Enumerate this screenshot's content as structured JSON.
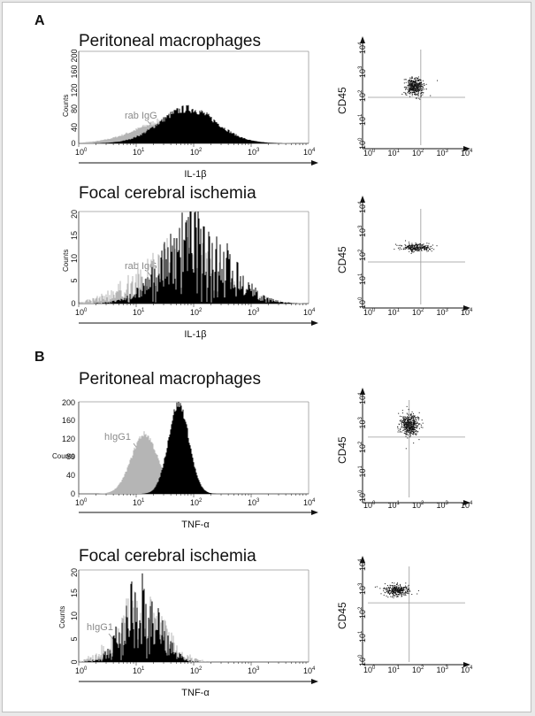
{
  "panels": [
    {
      "letter": "A",
      "sections": [
        {
          "title": "Peritoneal macrophages",
          "histogram": {
            "y_label": "Counts",
            "y_ticks": [
              "0",
              "40",
              "80",
              "120",
              "160",
              "200"
            ],
            "x_tick_bases": [
              "10",
              "10",
              "10",
              "10",
              "10"
            ],
            "x_tick_exps": [
              "0",
              "1",
              "2",
              "3",
              "4"
            ],
            "x_label": "IL-1β",
            "control_label": "rab IgG",
            "colors": {
              "control": "#b5b5b5",
              "stained": "#000000"
            }
          },
          "dotplot": {
            "y_label": "CD45"
          }
        },
        {
          "title": "Focal cerebral ischemia",
          "histogram": {
            "y_label": "Counts",
            "y_ticks": [
              "0",
              "5",
              "10",
              "15",
              "20"
            ],
            "x_tick_bases": [
              "10",
              "10",
              "10",
              "10",
              "10"
            ],
            "x_tick_exps": [
              "0",
              "1",
              "2",
              "3",
              "4"
            ],
            "x_label": "IL-1β",
            "control_label": "rab IgG",
            "colors": {
              "control": "#b5b5b5",
              "stained": "#000000"
            }
          },
          "dotplot": {
            "y_label": "CD45"
          }
        }
      ]
    },
    {
      "letter": "B",
      "sections": [
        {
          "title": "Peritoneal macrophages",
          "histogram": {
            "y_label": "Counts",
            "y_ticks": [
              "0",
              "40",
              "80",
              "120",
              "160",
              "200"
            ],
            "x_tick_bases": [
              "10",
              "10",
              "10",
              "10",
              "10"
            ],
            "x_tick_exps": [
              "0",
              "1",
              "2",
              "3",
              "4"
            ],
            "x_label": "TNF-α",
            "control_label": "hIgG1",
            "colors": {
              "control": "#b5b5b5",
              "stained": "#000000"
            }
          },
          "dotplot": {
            "y_label": "CD45"
          }
        },
        {
          "title": "Focal cerebral ischemia",
          "histogram": {
            "y_label": "Counts",
            "y_ticks": [
              "0",
              "5",
              "10",
              "15",
              "20"
            ],
            "x_tick_bases": [
              "10",
              "10",
              "10",
              "10",
              "10"
            ],
            "x_tick_exps": [
              "0",
              "1",
              "2",
              "3",
              "4"
            ],
            "x_label": "TNF-α",
            "control_label": "hIgG1",
            "colors": {
              "control": "#b5b5b5",
              "stained": "#000000"
            }
          },
          "dotplot": {
            "y_label": "CD45"
          }
        }
      ]
    }
  ],
  "chart_data": [
    {
      "type": "area",
      "panel": "A",
      "title": "Peritoneal macrophages",
      "xlabel": "IL-1β",
      "ylabel": "Counts",
      "x_scale": "log",
      "xlim": [
        1,
        10000
      ],
      "ylim": [
        0,
        200
      ],
      "series": [
        {
          "name": "rab IgG",
          "peak_x": 50,
          "peak_count": 55
        },
        {
          "peak_x": 80,
          "peak_count": 75
        }
      ]
    },
    {
      "type": "scatter",
      "panel": "A",
      "title": "Peritoneal macrophages",
      "xlabel": "IL-1β",
      "ylabel": "CD45",
      "x_scale": "log",
      "y_scale": "log",
      "xlim": [
        1,
        10000
      ],
      "ylim": [
        1,
        10000
      ],
      "quadrant_lines": {
        "x": 150,
        "y": 100
      },
      "cluster_center": [
        80,
        300
      ]
    },
    {
      "type": "area",
      "panel": "A",
      "title": "Focal cerebral ischemia",
      "xlabel": "IL-1β",
      "ylabel": "Counts",
      "x_scale": "log",
      "xlim": [
        1,
        10000
      ],
      "ylim": [
        0,
        20
      ],
      "series": [
        {
          "name": "rab IgG",
          "peak_x": 60,
          "peak_count": 10
        },
        {
          "peak_x": 110,
          "peak_count": 14
        }
      ]
    },
    {
      "type": "scatter",
      "panel": "A",
      "title": "Focal cerebral ischemia",
      "xlabel": "IL-1β",
      "ylabel": "CD45",
      "x_scale": "log",
      "y_scale": "log",
      "xlim": [
        1,
        10000
      ],
      "ylim": [
        1,
        10000
      ],
      "quadrant_lines": {
        "x": 150,
        "y": 60
      },
      "cluster_center": [
        100,
        250
      ]
    },
    {
      "type": "area",
      "panel": "B",
      "title": "Peritoneal macrophages",
      "xlabel": "TNF-α",
      "ylabel": "Counts",
      "x_scale": "log",
      "xlim": [
        1,
        10000
      ],
      "ylim": [
        0,
        200
      ],
      "series": [
        {
          "name": "hIgG1",
          "peak_x": 14,
          "peak_count": 130
        },
        {
          "peak_x": 55,
          "peak_count": 195
        }
      ]
    },
    {
      "type": "scatter",
      "panel": "B",
      "title": "Peritoneal macrophages",
      "xlabel": "TNF-α",
      "ylabel": "CD45",
      "x_scale": "log",
      "y_scale": "log",
      "xlim": [
        1,
        10000
      ],
      "ylim": [
        1,
        10000
      ],
      "quadrant_lines": {
        "x": 50,
        "y": 300
      },
      "cluster_center": [
        50,
        1000
      ]
    },
    {
      "type": "area",
      "panel": "B",
      "title": "Focal cerebral ischemia",
      "xlabel": "TNF-α",
      "ylabel": "Counts",
      "x_scale": "log",
      "xlim": [
        1,
        10000
      ],
      "ylim": [
        0,
        20
      ],
      "series": [
        {
          "name": "hIgG1",
          "peak_x": 12,
          "peak_count": 10
        },
        {
          "peak_x": 12,
          "peak_count": 12
        }
      ]
    },
    {
      "type": "scatter",
      "panel": "B",
      "title": "Focal cerebral ischemia",
      "xlabel": "TNF-α",
      "ylabel": "CD45",
      "x_scale": "log",
      "y_scale": "log",
      "xlim": [
        1,
        10000
      ],
      "ylim": [
        1,
        10000
      ],
      "quadrant_lines": {
        "x": 50,
        "y": 300
      },
      "cluster_center": [
        15,
        1000
      ]
    }
  ]
}
